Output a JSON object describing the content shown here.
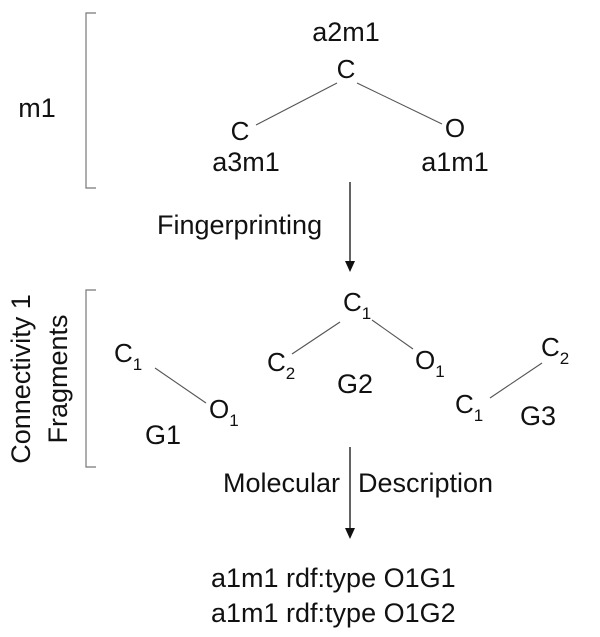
{
  "molecule": {
    "label": "m1",
    "center": {
      "atom": "C",
      "id": "a2m1"
    },
    "left": {
      "atom": "C",
      "id": "a3m1"
    },
    "right": {
      "atom": "O",
      "id": "a1m1"
    }
  },
  "step1": {
    "label": "Fingerprinting"
  },
  "fragments": {
    "label_line1": "Connectivity 1",
    "label_line2": "Fragments",
    "g1": {
      "name": "G1",
      "a": {
        "el": "C",
        "sub": "1"
      },
      "b": {
        "el": "O",
        "sub": "1"
      }
    },
    "g2": {
      "name": "G2",
      "top": {
        "el": "C",
        "sub": "1"
      },
      "left": {
        "el": "C",
        "sub": "2"
      },
      "right": {
        "el": "O",
        "sub": "1"
      }
    },
    "g3": {
      "name": "G3",
      "a": {
        "el": "C",
        "sub": "2"
      },
      "b": {
        "el": "C",
        "sub": "1"
      }
    }
  },
  "step2": {
    "label_part1": "Molecular",
    "label_part2": "Description"
  },
  "triples": [
    "a1m1 rdf:type O1G1",
    "a1m1 rdf:type O1G2"
  ],
  "colors": {
    "text": "#111111",
    "edge": "#555555",
    "bracket": "#777777"
  }
}
